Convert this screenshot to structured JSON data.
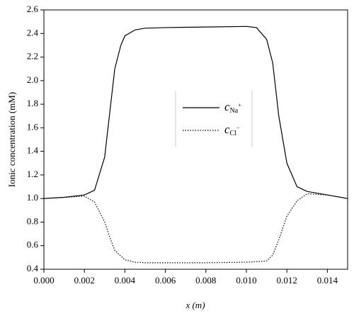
{
  "chart_data": {
    "type": "line",
    "x_label": "x (m)",
    "y_label": "Ionic concentration (mM)",
    "xlim": [
      0,
      0.015
    ],
    "ylim": [
      0.4,
      2.6
    ],
    "xticks": [
      {
        "value": 0,
        "label": "0.000"
      },
      {
        "value": 0.002,
        "label": "0.002"
      },
      {
        "value": 0.004,
        "label": "0.004"
      },
      {
        "value": 0.006,
        "label": "0.006"
      },
      {
        "value": 0.008,
        "label": "0.008"
      },
      {
        "value": 0.01,
        "label": "0.010"
      },
      {
        "value": 0.012,
        "label": "0.012"
      },
      {
        "value": 0.014,
        "label": "0.014"
      }
    ],
    "yticks": [
      {
        "value": 0.4,
        "label": "0.4"
      },
      {
        "value": 0.6,
        "label": "0.6"
      },
      {
        "value": 0.8,
        "label": "0.8"
      },
      {
        "value": 1.0,
        "label": "1.0"
      },
      {
        "value": 1.2,
        "label": "1.2"
      },
      {
        "value": 1.4,
        "label": "1.4"
      },
      {
        "value": 1.6,
        "label": "1.6"
      },
      {
        "value": 1.8,
        "label": "1.8"
      },
      {
        "value": 2.0,
        "label": "2.0"
      },
      {
        "value": 2.2,
        "label": "2.2"
      },
      {
        "value": 2.4,
        "label": "2.4"
      },
      {
        "value": 2.6,
        "label": "2.6"
      }
    ],
    "series": [
      {
        "name": "c",
        "name_sub": "Na",
        "name_sup": "+",
        "color": "#000000",
        "dash": "solid",
        "x": [
          0,
          0.001,
          0.002,
          0.0025,
          0.003,
          0.0033,
          0.0035,
          0.0038,
          0.004,
          0.0045,
          0.005,
          0.006,
          0.008,
          0.01,
          0.0105,
          0.011,
          0.0113,
          0.0116,
          0.012,
          0.0125,
          0.013,
          0.014,
          0.015
        ],
        "values": [
          1.0,
          1.01,
          1.03,
          1.07,
          1.35,
          1.8,
          2.1,
          2.3,
          2.38,
          2.43,
          2.445,
          2.45,
          2.455,
          2.46,
          2.45,
          2.35,
          2.15,
          1.7,
          1.3,
          1.1,
          1.06,
          1.03,
          1.0
        ]
      },
      {
        "name": "c",
        "name_sub": "Cl",
        "name_sup": "−",
        "color": "#000000",
        "dash": "dotted",
        "x": [
          0,
          0.002,
          0.0025,
          0.003,
          0.0033,
          0.0035,
          0.004,
          0.0045,
          0.005,
          0.008,
          0.01,
          0.011,
          0.0113,
          0.0116,
          0.012,
          0.0125,
          0.013,
          0.014,
          0.015
        ],
        "values": [
          1.0,
          1.02,
          0.97,
          0.8,
          0.65,
          0.56,
          0.48,
          0.46,
          0.455,
          0.455,
          0.46,
          0.47,
          0.52,
          0.65,
          0.85,
          0.98,
          1.04,
          1.03,
          1.0
        ]
      }
    ]
  }
}
